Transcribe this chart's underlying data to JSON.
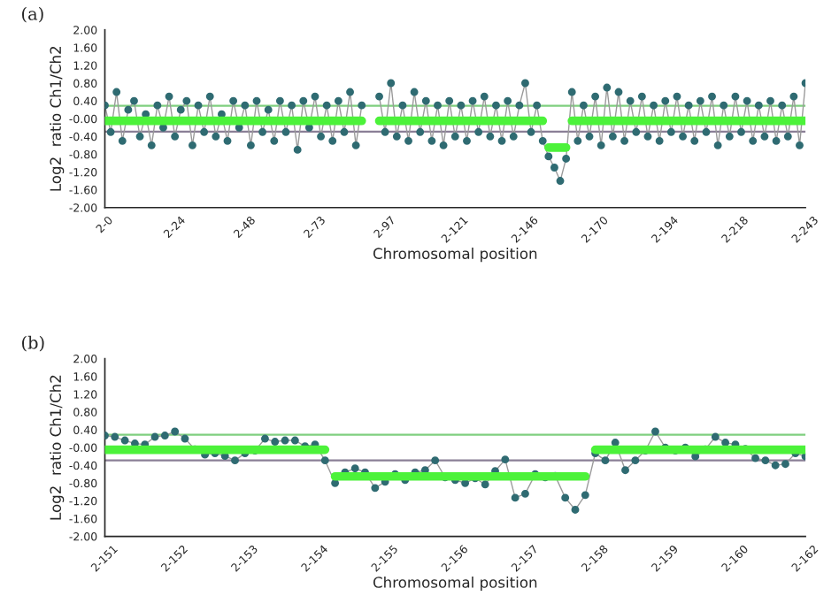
{
  "chart_data": [
    {
      "type": "line",
      "title": "(a)",
      "xlabel": "Chromosomal position",
      "ylabel": "Log2  ratio Ch1/Ch2",
      "marker": "circle",
      "grid": false,
      "legend": false,
      "categories": [
        "2-0",
        null,
        null,
        null,
        null,
        null,
        null,
        null,
        null,
        null,
        null,
        null,
        "2-24",
        null,
        null,
        null,
        null,
        null,
        null,
        null,
        null,
        null,
        null,
        null,
        "2-48",
        null,
        null,
        null,
        null,
        null,
        null,
        null,
        null,
        null,
        null,
        null,
        "2-73",
        null,
        null,
        null,
        null,
        null,
        null,
        null,
        null,
        null,
        null,
        null,
        "2-97",
        null,
        null,
        null,
        null,
        null,
        null,
        null,
        null,
        null,
        null,
        null,
        "2-121",
        null,
        null,
        null,
        null,
        null,
        null,
        null,
        null,
        null,
        null,
        null,
        "2-146",
        null,
        null,
        null,
        null,
        null,
        null,
        null,
        null,
        null,
        null,
        null,
        "2-170",
        null,
        null,
        null,
        null,
        null,
        null,
        null,
        null,
        null,
        null,
        null,
        "2-194",
        null,
        null,
        null,
        null,
        null,
        null,
        null,
        null,
        null,
        null,
        null,
        "2-218",
        null,
        null,
        null,
        null,
        null,
        null,
        null,
        null,
        null,
        null,
        null,
        "2-243"
      ],
      "ylim": [
        -2,
        2
      ],
      "yticks": [
        {
          "value": 2,
          "label": "2.00"
        },
        {
          "value": 1.6,
          "label": "1.60"
        },
        {
          "value": 1.2,
          "label": "1.20"
        },
        {
          "value": 0.8,
          "label": "0.80"
        },
        {
          "value": 0.4,
          "label": "0.40"
        },
        {
          "value": 0,
          "label": "-0.00"
        },
        {
          "value": -0.4,
          "label": "-0.40"
        },
        {
          "value": -0.8,
          "label": "-0.80"
        },
        {
          "value": -1.2,
          "label": "-1.20"
        },
        {
          "value": -1.6,
          "label": "-1.60"
        },
        {
          "value": -2,
          "label": "-2.00"
        }
      ],
      "ref_lines": [
        {
          "axis": "y",
          "value": 0.29,
          "color": "#7fcf7f"
        },
        {
          "axis": "y",
          "value": -0.29,
          "color": "#8a7f96"
        }
      ],
      "series": [
        {
          "color": "#2f6b72",
          "values": [
            0.3,
            -0.3,
            0.6,
            -0.5,
            0.2,
            0.4,
            -0.4,
            0.1,
            -0.6,
            0.3,
            -0.2,
            0.5,
            -0.4,
            0.2,
            0.4,
            -0.6,
            0.3,
            -0.3,
            0.5,
            -0.4,
            0.1,
            -0.5,
            0.4,
            -0.2,
            0.3,
            -0.6,
            0.4,
            -0.3,
            0.2,
            -0.5,
            0.4,
            -0.3,
            0.3,
            -0.7,
            0.4,
            -0.2,
            0.5,
            -0.4,
            0.3,
            -0.5,
            0.4,
            -0.3,
            0.6,
            -0.6,
            0.3,
            null,
            null,
            0.5,
            -0.3,
            0.8,
            -0.4,
            0.3,
            -0.5,
            0.6,
            -0.3,
            0.4,
            -0.5,
            0.3,
            -0.6,
            0.4,
            -0.4,
            0.3,
            -0.5,
            0.4,
            -0.3,
            0.5,
            -0.4,
            0.3,
            -0.5,
            0.4,
            -0.4,
            0.3,
            0.8,
            -0.3,
            0.3,
            -0.5,
            -0.85,
            -1.1,
            -1.4,
            -0.9,
            0.6,
            -0.5,
            0.3,
            -0.4,
            0.5,
            -0.6,
            0.7,
            -0.4,
            0.6,
            -0.5,
            0.4,
            -0.3,
            0.5,
            -0.4,
            0.3,
            -0.5,
            0.4,
            -0.3,
            0.5,
            -0.4,
            0.3,
            -0.5,
            0.4,
            -0.3,
            0.5,
            -0.6,
            0.3,
            -0.4,
            0.5,
            -0.3,
            0.4,
            -0.5,
            0.3,
            -0.4,
            0.4,
            -0.5,
            0.3,
            -0.4,
            0.5,
            -0.6,
            0.8
          ]
        },
        {
          "color": "#4cf23a",
          "marker": "none",
          "values": [
            -0.05,
            -0.05,
            -0.05,
            -0.05,
            -0.05,
            -0.05,
            -0.05,
            -0.05,
            -0.05,
            -0.05,
            -0.05,
            -0.05,
            -0.05,
            -0.05,
            -0.05,
            -0.05,
            -0.05,
            -0.05,
            -0.05,
            -0.05,
            -0.05,
            -0.05,
            -0.05,
            -0.05,
            -0.05,
            -0.05,
            -0.05,
            -0.05,
            -0.05,
            -0.05,
            -0.05,
            -0.05,
            -0.05,
            -0.05,
            -0.05,
            -0.05,
            -0.05,
            -0.05,
            -0.05,
            -0.05,
            -0.05,
            -0.05,
            -0.05,
            -0.05,
            -0.05,
            null,
            null,
            -0.05,
            -0.05,
            -0.05,
            -0.05,
            -0.05,
            -0.05,
            -0.05,
            -0.05,
            -0.05,
            -0.05,
            -0.05,
            -0.05,
            -0.05,
            -0.05,
            -0.05,
            -0.05,
            -0.05,
            -0.05,
            -0.05,
            -0.05,
            -0.05,
            -0.05,
            -0.05,
            -0.05,
            -0.05,
            -0.05,
            -0.05,
            -0.05,
            -0.05,
            null,
            null,
            null,
            null,
            -0.05,
            -0.05,
            -0.05,
            -0.05,
            -0.05,
            -0.05,
            -0.05,
            -0.05,
            -0.05,
            -0.05,
            -0.05,
            -0.05,
            -0.05,
            -0.05,
            -0.05,
            -0.05,
            -0.05,
            -0.05,
            -0.05,
            -0.05,
            -0.05,
            -0.05,
            -0.05,
            -0.05,
            -0.05,
            -0.05,
            -0.05,
            -0.05,
            -0.05,
            -0.05,
            -0.05,
            -0.05,
            -0.05,
            -0.05,
            -0.05,
            -0.05,
            -0.05,
            -0.05,
            -0.05,
            -0.05,
            -0.05
          ]
        },
        {
          "color": "#4cf23a",
          "marker": "none",
          "values": [
            null,
            null,
            null,
            null,
            null,
            null,
            null,
            null,
            null,
            null,
            null,
            null,
            null,
            null,
            null,
            null,
            null,
            null,
            null,
            null,
            null,
            null,
            null,
            null,
            null,
            null,
            null,
            null,
            null,
            null,
            null,
            null,
            null,
            null,
            null,
            null,
            null,
            null,
            null,
            null,
            null,
            null,
            null,
            null,
            null,
            null,
            null,
            null,
            null,
            null,
            null,
            null,
            null,
            null,
            null,
            null,
            null,
            null,
            null,
            null,
            null,
            null,
            null,
            null,
            null,
            null,
            null,
            null,
            null,
            null,
            null,
            null,
            null,
            null,
            null,
            null,
            -0.65,
            -0.65,
            -0.65,
            -0.65,
            null,
            null,
            null,
            null,
            null,
            null,
            null,
            null,
            null,
            null,
            null,
            null,
            null,
            null,
            null,
            null,
            null,
            null,
            null,
            null,
            null,
            null,
            null,
            null,
            null,
            null,
            null,
            null,
            null,
            null,
            null,
            null,
            null,
            null,
            null,
            null,
            null,
            null,
            null,
            null,
            null
          ]
        }
      ]
    },
    {
      "type": "line",
      "title": "(b)",
      "xlabel": "Chromosomal position",
      "ylabel": "Log2  ratio Ch1/Ch2",
      "marker": "circle",
      "grid": false,
      "legend": false,
      "categories": [
        "2-151",
        null,
        null,
        null,
        null,
        null,
        null,
        "2-152",
        null,
        null,
        null,
        null,
        null,
        null,
        "2-153",
        null,
        null,
        null,
        null,
        null,
        null,
        "2-154",
        null,
        null,
        null,
        null,
        null,
        null,
        "2-155",
        null,
        null,
        null,
        null,
        null,
        null,
        "2-156",
        null,
        null,
        null,
        null,
        null,
        null,
        "2-157",
        null,
        null,
        null,
        null,
        null,
        null,
        "2-158",
        null,
        null,
        null,
        null,
        null,
        null,
        "2-159",
        null,
        null,
        null,
        null,
        null,
        null,
        "2-160",
        null,
        null,
        null,
        null,
        null,
        null,
        "2-162"
      ],
      "ylim": [
        -2,
        2
      ],
      "yticks": [
        {
          "value": 2,
          "label": "2.00"
        },
        {
          "value": 1.6,
          "label": "1.60"
        },
        {
          "value": 1.2,
          "label": "1.20"
        },
        {
          "value": 0.8,
          "label": "0.80"
        },
        {
          "value": 0.4,
          "label": "0.40"
        },
        {
          "value": 0,
          "label": "-0.00"
        },
        {
          "value": -0.4,
          "label": "-0.40"
        },
        {
          "value": -0.8,
          "label": "-0.80"
        },
        {
          "value": -1.2,
          "label": "-1.20"
        },
        {
          "value": -1.6,
          "label": "-1.60"
        },
        {
          "value": -2,
          "label": "-2.00"
        }
      ],
      "ref_lines": [
        {
          "axis": "y",
          "value": 0.29,
          "color": "#7fcf7f"
        },
        {
          "axis": "y",
          "value": -0.29,
          "color": "#8a7f96"
        }
      ],
      "series": [
        {
          "color": "#2f6b72",
          "values": [
            0.27,
            0.24,
            0.16,
            0.09,
            0.07,
            0.24,
            0.27,
            0.36,
            0.2,
            -0.04,
            -0.16,
            -0.13,
            -0.19,
            -0.29,
            -0.13,
            -0.07,
            0.2,
            0.13,
            0.16,
            0.16,
            0.03,
            0.07,
            -0.29,
            -0.8,
            -0.56,
            -0.47,
            -0.56,
            -0.91,
            -0.77,
            -0.6,
            -0.73,
            -0.56,
            -0.51,
            -0.29,
            -0.67,
            -0.73,
            -0.8,
            -0.69,
            -0.83,
            -0.53,
            -0.27,
            -1.13,
            -1.04,
            -0.6,
            -0.67,
            -0.64,
            -1.13,
            -1.4,
            -1.07,
            -0.13,
            -0.29,
            0.11,
            -0.51,
            -0.29,
            -0.07,
            0.36,
            0,
            -0.07,
            0,
            -0.2,
            -0.04,
            0.24,
            0.11,
            0.07,
            -0.03,
            -0.24,
            -0.29,
            -0.4,
            -0.37,
            -0.13,
            -0.2
          ]
        },
        {
          "color": "#4cf23a",
          "marker": "none",
          "values": [
            -0.05,
            -0.05,
            -0.05,
            -0.05,
            -0.05,
            -0.05,
            -0.05,
            -0.05,
            -0.05,
            -0.05,
            -0.05,
            -0.05,
            -0.05,
            -0.05,
            -0.05,
            -0.05,
            -0.05,
            -0.05,
            -0.05,
            -0.05,
            -0.05,
            -0.05,
            -0.05,
            null,
            null,
            null,
            null,
            null,
            null,
            null,
            null,
            null,
            null,
            null,
            null,
            null,
            null,
            null,
            null,
            null,
            null,
            null,
            null,
            null,
            null,
            null,
            null,
            null,
            null,
            -0.05,
            -0.05,
            -0.05,
            -0.05,
            -0.05,
            -0.05,
            -0.05,
            -0.05,
            -0.05,
            -0.05,
            -0.05,
            -0.05,
            -0.05,
            -0.05,
            -0.05,
            -0.05,
            -0.05,
            -0.05,
            -0.05,
            -0.05,
            -0.05,
            -0.05
          ]
        },
        {
          "color": "#4cf23a",
          "marker": "none",
          "values": [
            null,
            null,
            null,
            null,
            null,
            null,
            null,
            null,
            null,
            null,
            null,
            null,
            null,
            null,
            null,
            null,
            null,
            null,
            null,
            null,
            null,
            null,
            null,
            -0.65,
            -0.65,
            -0.65,
            -0.65,
            -0.65,
            -0.65,
            -0.65,
            -0.65,
            -0.65,
            -0.65,
            -0.65,
            -0.65,
            -0.65,
            -0.65,
            -0.65,
            -0.65,
            -0.65,
            -0.65,
            -0.65,
            -0.65,
            -0.65,
            -0.65,
            -0.65,
            -0.65,
            -0.65,
            -0.65,
            null,
            null,
            null,
            null,
            null,
            null,
            null,
            null,
            null,
            null,
            null,
            null,
            null,
            null,
            null,
            null,
            null,
            null,
            null,
            null,
            null,
            null
          ]
        }
      ]
    }
  ]
}
